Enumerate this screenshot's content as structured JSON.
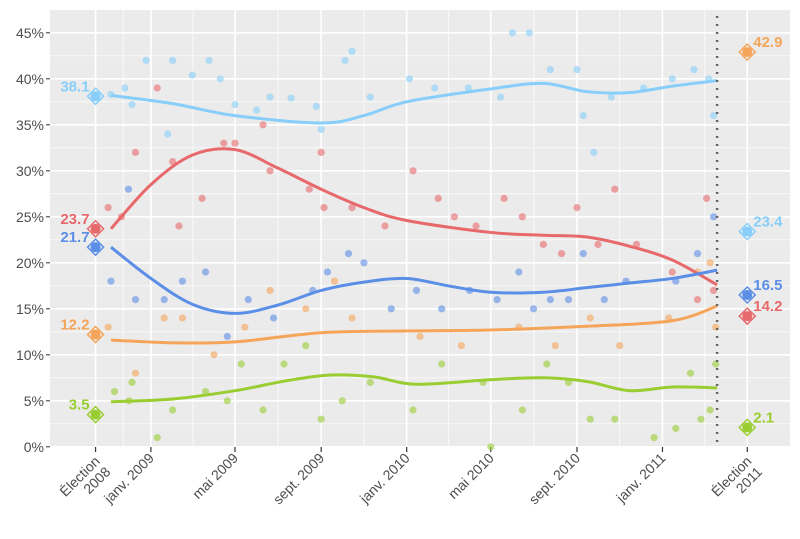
{
  "chart_data": {
    "type": "scatter",
    "title": "",
    "xlabel": "",
    "ylabel": "",
    "ylim": [
      0,
      45
    ],
    "xlim": [
      "2008-08-10",
      "2011-07-02"
    ],
    "grid": true,
    "legend": "none",
    "y_ticks": [
      0,
      5,
      10,
      15,
      20,
      25,
      30,
      35,
      40,
      45
    ],
    "y_tick_labels": [
      "0%",
      "5%",
      "10%",
      "15%",
      "20%",
      "25%",
      "30%",
      "35%",
      "40%",
      "45%"
    ],
    "x_ticks": [
      {
        "date": "2008-10-14",
        "label": [
          "Élection",
          "2008"
        ]
      },
      {
        "date": "2009-01-01",
        "label": [
          "janv. 2009"
        ]
      },
      {
        "date": "2009-05-01",
        "label": [
          "mai 2009"
        ]
      },
      {
        "date": "2009-09-01",
        "label": [
          "sept. 2009"
        ]
      },
      {
        "date": "2010-01-01",
        "label": [
          "janv. 2010"
        ]
      },
      {
        "date": "2010-05-01",
        "label": [
          "mai 2010"
        ]
      },
      {
        "date": "2010-09-01",
        "label": [
          "sept. 2010"
        ]
      },
      {
        "date": "2011-01-01",
        "label": [
          "janv. 2011"
        ]
      },
      {
        "date": "2011-05-02",
        "label": [
          "Élection",
          "2011"
        ]
      }
    ],
    "last_poll_line": "2011-03-20",
    "series": [
      {
        "color": "#87cefa",
        "election_2008": {
          "date": "2008-10-14",
          "value": 38.1,
          "label": "38.1"
        },
        "election_2011": {
          "date": "2011-05-02",
          "value": 23.4,
          "label": "23.4"
        },
        "trend": [
          [
            "2008-11-05",
            38.2
          ],
          [
            "2009-02-01",
            37.3
          ],
          [
            "2009-05-01",
            36.0
          ],
          [
            "2009-09-01",
            35.2
          ],
          [
            "2009-11-01",
            36.0
          ],
          [
            "2010-01-01",
            37.5
          ],
          [
            "2010-05-01",
            38.9
          ],
          [
            "2010-07-15",
            39.5
          ],
          [
            "2010-09-15",
            38.6
          ],
          [
            "2010-11-15",
            38.5
          ],
          [
            "2011-01-15",
            39.2
          ],
          [
            "2011-03-20",
            39.8
          ]
        ],
        "points": [
          [
            "2008-11-05",
            38.3
          ],
          [
            "2008-11-25",
            39
          ],
          [
            "2008-12-05",
            37.2
          ],
          [
            "2008-12-25",
            42
          ],
          [
            "2009-01-25",
            34
          ],
          [
            "2009-02-01",
            42
          ],
          [
            "2009-03-01",
            40.4
          ],
          [
            "2009-03-25",
            42
          ],
          [
            "2009-04-10",
            40
          ],
          [
            "2009-05-01",
            37.2
          ],
          [
            "2009-06-01",
            36.6
          ],
          [
            "2009-06-20",
            38
          ],
          [
            "2009-07-20",
            37.9
          ],
          [
            "2009-08-25",
            37
          ],
          [
            "2009-09-01",
            34.5
          ],
          [
            "2009-10-05",
            42
          ],
          [
            "2009-10-15",
            43
          ],
          [
            "2009-11-10",
            38
          ],
          [
            "2010-01-05",
            40
          ],
          [
            "2010-02-10",
            39
          ],
          [
            "2010-03-30",
            39
          ],
          [
            "2010-05-15",
            38
          ],
          [
            "2010-06-01",
            45
          ],
          [
            "2010-06-25",
            45
          ],
          [
            "2010-07-25",
            41
          ],
          [
            "2010-09-01",
            41
          ],
          [
            "2010-09-10",
            36
          ],
          [
            "2010-09-25",
            32
          ],
          [
            "2010-10-20",
            38
          ],
          [
            "2010-12-05",
            39
          ],
          [
            "2011-01-15",
            40
          ],
          [
            "2011-02-15",
            41
          ],
          [
            "2011-03-08",
            40
          ],
          [
            "2011-03-15",
            36
          ]
        ]
      },
      {
        "color": "#e8696b",
        "election_2008": {
          "date": "2008-10-14",
          "value": 23.7,
          "label": "23.7"
        },
        "election_2011": {
          "date": "2011-05-02",
          "value": 14.2,
          "label": "14.2"
        },
        "trend": [
          [
            "2008-11-05",
            23.7
          ],
          [
            "2009-01-01",
            28.5
          ],
          [
            "2009-03-01",
            31.7
          ],
          [
            "2009-05-01",
            32.3
          ],
          [
            "2009-07-01",
            30.3
          ],
          [
            "2009-09-01",
            28.0
          ],
          [
            "2009-11-01",
            26.0
          ],
          [
            "2010-01-01",
            24.6
          ],
          [
            "2010-05-01",
            23.3
          ],
          [
            "2010-07-15",
            23.0
          ],
          [
            "2010-09-15",
            22.8
          ],
          [
            "2010-11-15",
            21.8
          ],
          [
            "2011-01-15",
            20.3
          ],
          [
            "2011-03-20",
            17.6
          ]
        ],
        "points": [
          [
            "2008-11-01",
            26
          ],
          [
            "2008-11-20",
            25
          ],
          [
            "2008-12-10",
            32
          ],
          [
            "2009-01-10",
            39
          ],
          [
            "2009-02-01",
            31
          ],
          [
            "2009-02-10",
            24
          ],
          [
            "2009-03-15",
            27
          ],
          [
            "2009-04-15",
            33
          ],
          [
            "2009-05-01",
            33
          ],
          [
            "2009-06-10",
            35
          ],
          [
            "2009-06-20",
            30
          ],
          [
            "2009-08-15",
            28
          ],
          [
            "2009-09-01",
            32
          ],
          [
            "2009-09-05",
            26
          ],
          [
            "2009-10-15",
            26
          ],
          [
            "2009-12-01",
            24
          ],
          [
            "2010-01-10",
            30
          ],
          [
            "2010-02-15",
            27
          ],
          [
            "2010-03-10",
            25
          ],
          [
            "2010-04-10",
            24
          ],
          [
            "2010-05-20",
            27
          ],
          [
            "2010-06-15",
            25
          ],
          [
            "2010-07-15",
            22
          ],
          [
            "2010-08-10",
            21
          ],
          [
            "2010-09-01",
            26
          ],
          [
            "2010-10-01",
            22
          ],
          [
            "2010-10-25",
            28
          ],
          [
            "2010-11-25",
            22
          ],
          [
            "2011-01-15",
            19
          ],
          [
            "2011-02-20",
            16
          ],
          [
            "2011-03-05",
            27
          ],
          [
            "2011-03-15",
            17
          ]
        ]
      },
      {
        "color": "#5b8ee6",
        "election_2008": {
          "date": "2008-10-14",
          "value": 21.7,
          "label": "21.7"
        },
        "election_2011": {
          "date": "2011-05-02",
          "value": 16.5,
          "label": "16.5"
        },
        "trend": [
          [
            "2008-11-05",
            21.7
          ],
          [
            "2009-01-01",
            18.3
          ],
          [
            "2009-03-01",
            15.5
          ],
          [
            "2009-05-01",
            14.5
          ],
          [
            "2009-07-01",
            15.4
          ],
          [
            "2009-09-01",
            17.0
          ],
          [
            "2009-11-01",
            17.9
          ],
          [
            "2010-01-01",
            18.3
          ],
          [
            "2010-03-01",
            17.5
          ],
          [
            "2010-05-01",
            16.8
          ],
          [
            "2010-07-15",
            16.8
          ],
          [
            "2010-09-15",
            17.3
          ],
          [
            "2010-11-15",
            17.8
          ],
          [
            "2011-01-15",
            18.3
          ],
          [
            "2011-03-20",
            19.2
          ]
        ],
        "points": [
          [
            "2008-11-05",
            18
          ],
          [
            "2008-11-30",
            28
          ],
          [
            "2008-12-10",
            16
          ],
          [
            "2009-01-20",
            16
          ],
          [
            "2009-02-15",
            18
          ],
          [
            "2009-03-20",
            19
          ],
          [
            "2009-04-20",
            12
          ],
          [
            "2009-05-20",
            16
          ],
          [
            "2009-06-25",
            14
          ],
          [
            "2009-08-20",
            17
          ],
          [
            "2009-09-10",
            19
          ],
          [
            "2009-10-10",
            21
          ],
          [
            "2009-11-01",
            20
          ],
          [
            "2009-12-10",
            15
          ],
          [
            "2010-01-15",
            17
          ],
          [
            "2010-02-20",
            15
          ],
          [
            "2010-04-01",
            17
          ],
          [
            "2010-05-10",
            16
          ],
          [
            "2010-06-10",
            19
          ],
          [
            "2010-07-01",
            15
          ],
          [
            "2010-07-25",
            16
          ],
          [
            "2010-08-20",
            16
          ],
          [
            "2010-09-10",
            21
          ],
          [
            "2010-10-10",
            16
          ],
          [
            "2010-11-10",
            18
          ],
          [
            "2011-01-20",
            18
          ],
          [
            "2011-02-20",
            21
          ],
          [
            "2011-03-15",
            25
          ]
        ]
      },
      {
        "color": "#f5a55a",
        "election_2008": {
          "date": "2008-10-14",
          "value": 12.2,
          "label": "12.2"
        },
        "election_2011": {
          "date": "2011-05-02",
          "value": 42.9,
          "label": "42.9"
        },
        "trend": [
          [
            "2008-11-05",
            11.6
          ],
          [
            "2009-02-01",
            11.3
          ],
          [
            "2009-05-01",
            11.4
          ],
          [
            "2009-09-01",
            12.4
          ],
          [
            "2010-01-01",
            12.6
          ],
          [
            "2010-05-01",
            12.7
          ],
          [
            "2010-09-15",
            13.1
          ],
          [
            "2011-01-15",
            13.7
          ],
          [
            "2011-03-20",
            15.3
          ]
        ],
        "points": [
          [
            "2008-11-01",
            13
          ],
          [
            "2008-12-10",
            8
          ],
          [
            "2009-01-20",
            14
          ],
          [
            "2009-02-15",
            14
          ],
          [
            "2009-04-01",
            10
          ],
          [
            "2009-05-15",
            13
          ],
          [
            "2009-06-20",
            17
          ],
          [
            "2009-08-10",
            15
          ],
          [
            "2009-09-20",
            18
          ],
          [
            "2009-10-15",
            14
          ],
          [
            "2010-01-20",
            12
          ],
          [
            "2010-03-20",
            11
          ],
          [
            "2010-06-10",
            13
          ],
          [
            "2010-08-01",
            11
          ],
          [
            "2010-09-20",
            14
          ],
          [
            "2010-11-01",
            11
          ],
          [
            "2011-01-10",
            14
          ],
          [
            "2011-02-20",
            19
          ],
          [
            "2011-03-10",
            20
          ],
          [
            "2011-03-18",
            13
          ]
        ]
      },
      {
        "color": "#9acd32",
        "election_2008": {
          "date": "2008-10-14",
          "value": 3.5,
          "label": "3.5"
        },
        "election_2011": {
          "date": "2011-05-02",
          "value": 2.1,
          "label": "2.1"
        },
        "trend": [
          [
            "2008-11-05",
            4.9
          ],
          [
            "2009-02-01",
            5.2
          ],
          [
            "2009-05-01",
            6.1
          ],
          [
            "2009-07-15",
            7.2
          ],
          [
            "2009-09-15",
            7.8
          ],
          [
            "2009-11-15",
            7.6
          ],
          [
            "2010-01-15",
            6.8
          ],
          [
            "2010-05-01",
            7.3
          ],
          [
            "2010-07-15",
            7.5
          ],
          [
            "2010-09-15",
            7.1
          ],
          [
            "2010-11-15",
            6.1
          ],
          [
            "2011-01-15",
            6.5
          ],
          [
            "2011-03-20",
            6.4
          ]
        ],
        "points": [
          [
            "2008-11-10",
            6
          ],
          [
            "2008-12-01",
            5
          ],
          [
            "2008-12-05",
            7
          ],
          [
            "2009-01-10",
            1
          ],
          [
            "2009-02-01",
            4
          ],
          [
            "2009-03-20",
            6
          ],
          [
            "2009-04-20",
            5
          ],
          [
            "2009-05-10",
            9
          ],
          [
            "2009-06-10",
            4
          ],
          [
            "2009-07-10",
            9
          ],
          [
            "2009-08-10",
            11
          ],
          [
            "2009-09-01",
            3
          ],
          [
            "2009-10-01",
            5
          ],
          [
            "2009-11-10",
            7
          ],
          [
            "2010-01-10",
            4
          ],
          [
            "2010-02-20",
            9
          ],
          [
            "2010-04-20",
            7
          ],
          [
            "2010-05-01",
            0
          ],
          [
            "2010-06-15",
            4
          ],
          [
            "2010-07-20",
            9
          ],
          [
            "2010-08-20",
            7
          ],
          [
            "2010-09-20",
            3
          ],
          [
            "2010-10-25",
            3
          ],
          [
            "2010-12-20",
            1
          ],
          [
            "2011-01-20",
            2
          ],
          [
            "2011-02-10",
            8
          ],
          [
            "2011-02-25",
            3
          ],
          [
            "2011-03-10",
            4
          ],
          [
            "2011-03-18",
            9
          ]
        ]
      }
    ]
  }
}
